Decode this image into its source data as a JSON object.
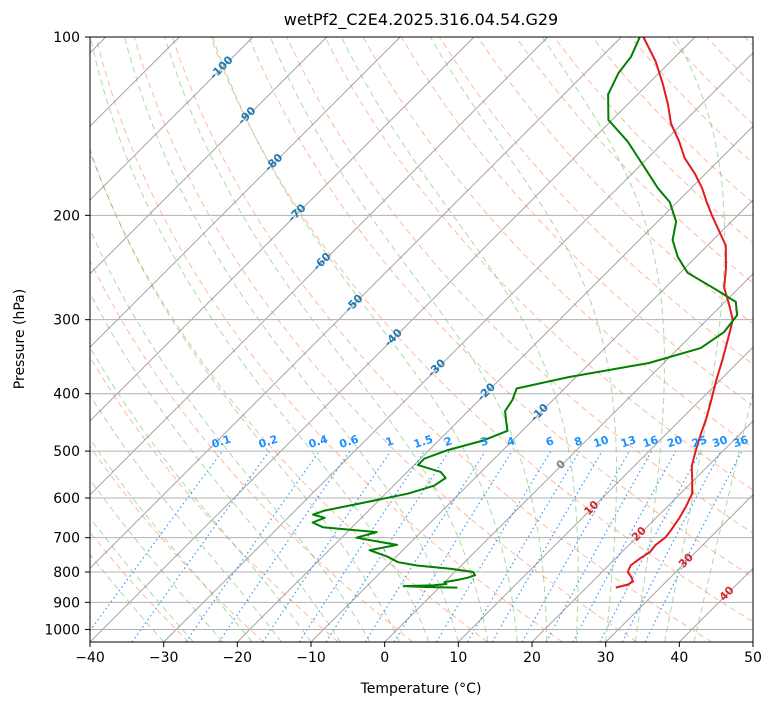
{
  "chart_data": {
    "type": "line",
    "subtype": "skew-t log-p",
    "title": "wetPf2_C2E4.2025.316.04.54.G29",
    "xlabel": "Temperature (°C)",
    "ylabel": "Pressure (hPa)",
    "xlim": [
      -40,
      50
    ],
    "ylim": [
      1050,
      100
    ],
    "y_scale": "log",
    "x_ticks": [
      -40,
      -30,
      -20,
      -10,
      0,
      10,
      20,
      30,
      40,
      50
    ],
    "x_tick_labels": [
      "−40",
      "−30",
      "−20",
      "−10",
      "0",
      "10",
      "20",
      "30",
      "40",
      "50"
    ],
    "y_ticks": [
      100,
      200,
      300,
      400,
      500,
      600,
      700,
      800,
      900,
      1000
    ],
    "y_tick_labels": [
      "100",
      "200",
      "300",
      "400",
      "500",
      "600",
      "700",
      "800",
      "900",
      "1000"
    ],
    "grid": true,
    "colors": {
      "temperature": "#e41a1c",
      "dewpoint": "#008000",
      "dry_adiabat": "#ff7f50",
      "moist_adiabat": "#2ca02c",
      "mixing_ratio": "#1e90ff",
      "isotherm_skewed": "#808080",
      "isotherm_label": "#1f77b4",
      "positive_label": "#d62728"
    },
    "series": [
      {
        "name": "",
        "role": "temperature",
        "points": [
          [
            850,
            24.0
          ],
          [
            840,
            25.2
          ],
          [
            830,
            25.5
          ],
          [
            815,
            24.6
          ],
          [
            800,
            23.5
          ],
          [
            780,
            23.0
          ],
          [
            760,
            23.3
          ],
          [
            740,
            23.8
          ],
          [
            720,
            23.6
          ],
          [
            700,
            23.9
          ],
          [
            680,
            23.7
          ],
          [
            650,
            23.2
          ],
          [
            620,
            22.5
          ],
          [
            590,
            21.6
          ],
          [
            560,
            19.8
          ],
          [
            530,
            17.8
          ],
          [
            500,
            16.3
          ],
          [
            470,
            14.8
          ],
          [
            440,
            13.3
          ],
          [
            410,
            11.5
          ],
          [
            380,
            9.5
          ],
          [
            350,
            7.5
          ],
          [
            320,
            5.2
          ],
          [
            300,
            3.5
          ],
          [
            280,
            0.5
          ],
          [
            265,
            -2.0
          ],
          [
            245,
            -4.5
          ],
          [
            225,
            -7.5
          ],
          [
            210,
            -11.0
          ],
          [
            200,
            -13.5
          ],
          [
            190,
            -16.0
          ],
          [
            180,
            -18.5
          ],
          [
            170,
            -21.5
          ],
          [
            160,
            -25.0
          ],
          [
            150,
            -28.0
          ],
          [
            140,
            -31.5
          ],
          [
            130,
            -34.5
          ],
          [
            120,
            -38.0
          ],
          [
            110,
            -42.0
          ],
          [
            100,
            -47.0
          ]
        ]
      },
      {
        "name": "",
        "role": "dewpoint",
        "points": [
          [
            850,
            2.5
          ],
          [
            848,
            -2.0
          ],
          [
            845,
            -5.0
          ],
          [
            842,
            -1.0
          ],
          [
            838,
            0.5
          ],
          [
            832,
            0.0
          ],
          [
            825,
            1.5
          ],
          [
            818,
            2.5
          ],
          [
            810,
            3.2
          ],
          [
            800,
            2.5
          ],
          [
            790,
            -1.0
          ],
          [
            780,
            -6.0
          ],
          [
            770,
            -9.0
          ],
          [
            755,
            -11.0
          ],
          [
            735,
            -14.5
          ],
          [
            720,
            -11.5
          ],
          [
            700,
            -18.0
          ],
          [
            685,
            -16.0
          ],
          [
            672,
            -24.0
          ],
          [
            660,
            -26.0
          ],
          [
            648,
            -25.0
          ],
          [
            640,
            -27.0
          ],
          [
            630,
            -26.0
          ],
          [
            612,
            -22.0
          ],
          [
            590,
            -17.0
          ],
          [
            572,
            -14.5
          ],
          [
            555,
            -14.0
          ],
          [
            542,
            -15.5
          ],
          [
            528,
            -19.5
          ],
          [
            515,
            -19.5
          ],
          [
            498,
            -17.5
          ],
          [
            480,
            -14.0
          ],
          [
            462,
            -12.0
          ],
          [
            445,
            -13.5
          ],
          [
            428,
            -15.0
          ],
          [
            410,
            -15.5
          ],
          [
            392,
            -16.5
          ],
          [
            375,
            -11.0
          ],
          [
            355,
            -2.0
          ],
          [
            335,
            3.0
          ],
          [
            315,
            4.0
          ],
          [
            295,
            3.5
          ],
          [
            280,
            1.5
          ],
          [
            265,
            -3.5
          ],
          [
            250,
            -9.0
          ],
          [
            235,
            -12.5
          ],
          [
            220,
            -15.5
          ],
          [
            205,
            -17.5
          ],
          [
            190,
            -21.0
          ],
          [
            180,
            -24.5
          ],
          [
            165,
            -29.5
          ],
          [
            150,
            -35.0
          ],
          [
            138,
            -40.5
          ],
          [
            125,
            -44.0
          ],
          [
            115,
            -45.5
          ],
          [
            108,
            -46.0
          ],
          [
            100,
            -47.5
          ]
        ]
      }
    ],
    "isotherm_labels": [
      "-100",
      "-90",
      "-80",
      "-70",
      "-60",
      "-50",
      "-40",
      "-30",
      "-20",
      "-10",
      "0",
      "10",
      "20",
      "30",
      "40"
    ],
    "mixing_ratio_labels": [
      "0.1",
      "0.2",
      "0.4",
      "0.6",
      "1",
      "1.5",
      "2",
      "3",
      "4",
      "6",
      "8",
      "10",
      "13",
      "16",
      "20",
      "25",
      "30",
      "36"
    ],
    "mixing_ratio_values": [
      0.1,
      0.2,
      0.4,
      0.6,
      1,
      1.5,
      2,
      3,
      4,
      6,
      8,
      10,
      13,
      16,
      20,
      25,
      30,
      36
    ]
  }
}
